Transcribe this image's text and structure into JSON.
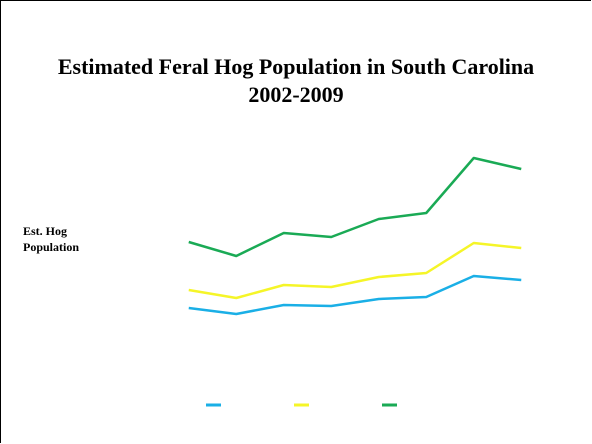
{
  "chart_data": {
    "type": "line",
    "title": "Estimated  Feral Hog Population in South Carolina 2002-2009",
    "y_label": "Est. Hog Population",
    "categories": [
      null,
      null,
      null,
      null,
      null,
      null,
      null,
      null
    ],
    "ylim": [
      0,
      100
    ],
    "series": [
      {
        "color": "#1aafe6",
        "values": [
          16.5,
          13.5,
          18,
          17.5,
          21,
          22,
          32.5,
          30.5
        ]
      },
      {
        "color": "#f5f528",
        "values": [
          25.5,
          21.5,
          28,
          27,
          32,
          34,
          49,
          46.5
        ]
      },
      {
        "color": "#1aaa55",
        "values": [
          49.5,
          42.5,
          54,
          52,
          61,
          64,
          91.5,
          86
        ]
      }
    ]
  }
}
